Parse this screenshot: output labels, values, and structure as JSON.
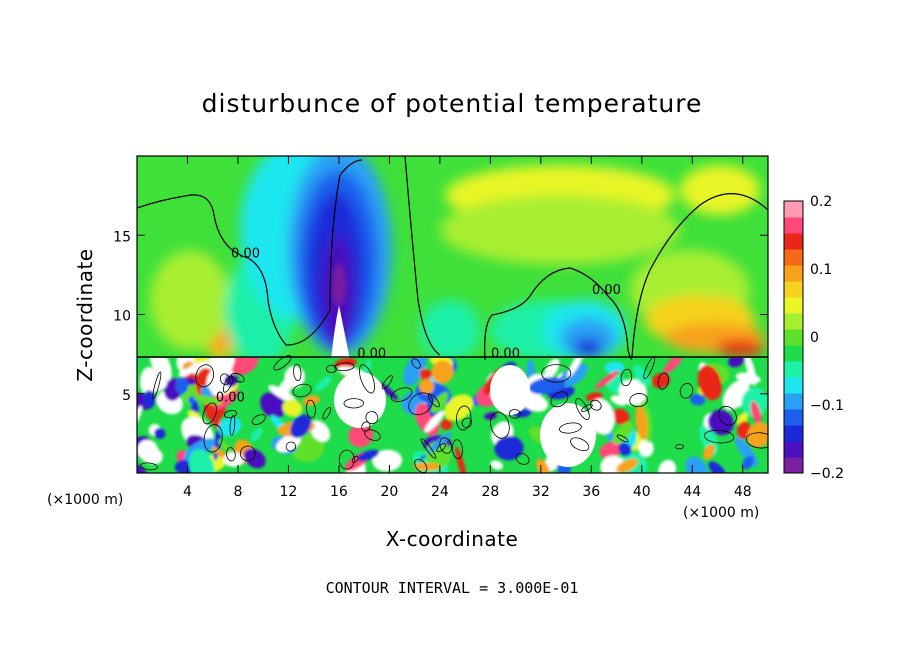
{
  "chart_data": {
    "type": "heatmap",
    "title": "disturbunce of potential temperature",
    "xlabel": "X-coordinate",
    "ylabel": "Z-coordinate",
    "x_unit_left": "(×1000 m)",
    "x_unit_right": "(×1000 m)",
    "xlim": [
      0,
      50
    ],
    "ylim": [
      0,
      20
    ],
    "x_ticks": [
      4,
      8,
      12,
      16,
      20,
      24,
      28,
      32,
      36,
      40,
      44,
      48
    ],
    "y_ticks": [
      5,
      10,
      15
    ],
    "x_tick_labels": [
      "4",
      "8",
      "12",
      "16",
      "20",
      "24",
      "28",
      "32",
      "36",
      "40",
      "44",
      "48"
    ],
    "y_tick_labels": [
      "5",
      "10",
      "15"
    ],
    "colorbar": {
      "min": -0.2,
      "max": 0.2,
      "ticks": [
        -0.2,
        -0.1,
        0,
        0.1,
        0.2
      ],
      "tick_labels": [
        "−0.2",
        "−0.1",
        "0",
        "0.1",
        "0.2"
      ],
      "colors": [
        "#7a1fa2",
        "#4a0fbf",
        "#1a2ad8",
        "#1f5fee",
        "#2aa0f4",
        "#1ee6ef",
        "#1ff0a8",
        "#1edc4a",
        "#5fe02a",
        "#a8ee30",
        "#e8f526",
        "#f5d21f",
        "#f7a21b",
        "#f56a18",
        "#ea2618",
        "#ff4a78",
        "#ff9ab4"
      ]
    },
    "contour_labels": [
      {
        "text": "0.00",
        "x": 8.6,
        "y": 13.6
      },
      {
        "text": "0.00",
        "x": 37.2,
        "y": 11.3
      },
      {
        "text": "0.00",
        "x": 18.6,
        "y": 7.3
      },
      {
        "text": "0.00",
        "x": 29.2,
        "y": 7.3
      },
      {
        "text": "0.00",
        "x": 7.4,
        "y": 4.5
      }
    ],
    "annotation": "CONTOUR INTERVAL = 3.000E-01"
  },
  "colors": {
    "background": "#ffffff",
    "field_base": "#3fe03a"
  }
}
